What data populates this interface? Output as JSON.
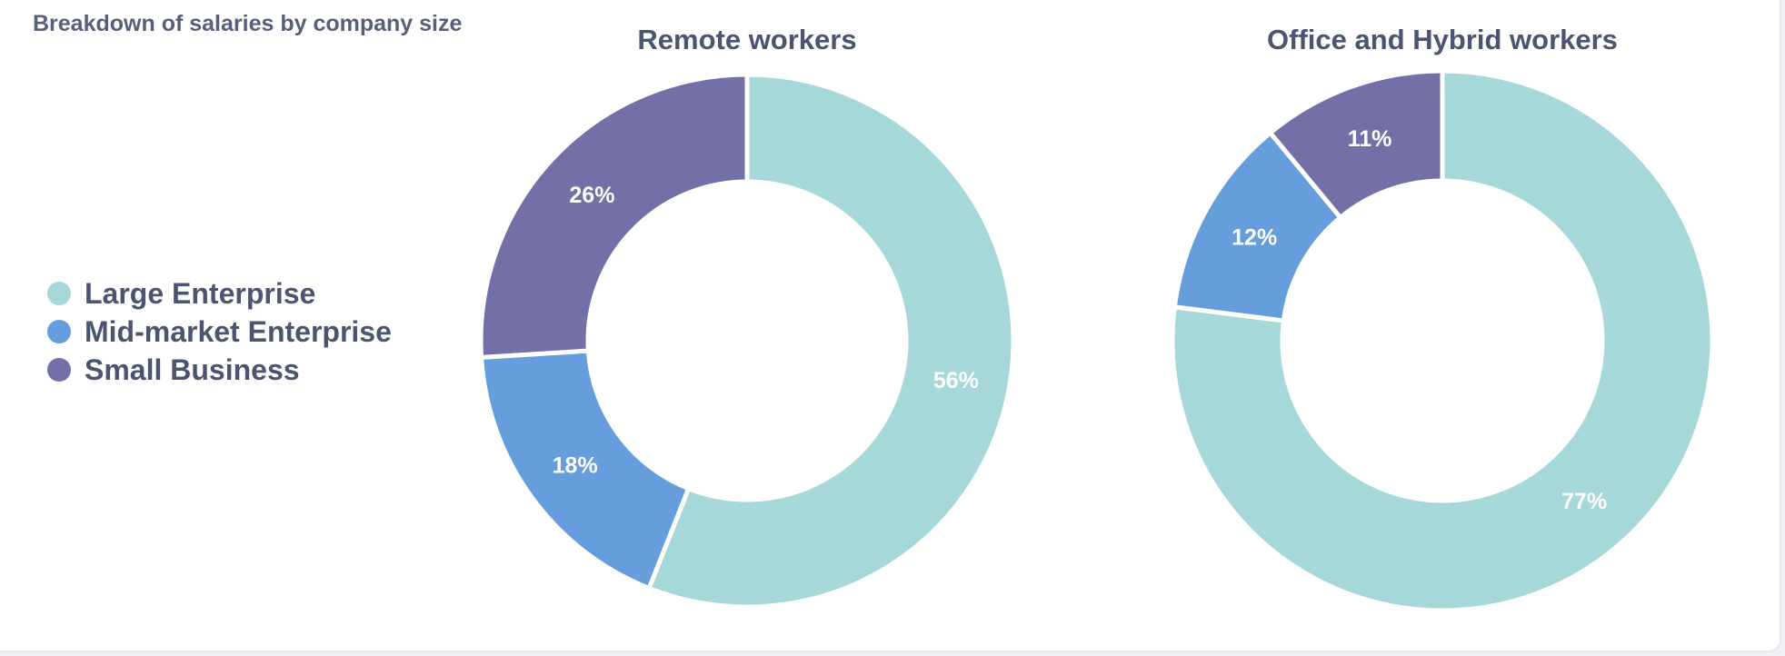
{
  "panel_title": "Breakdown of salaries by company size",
  "legend": [
    {
      "label": "Large Enterprise",
      "color": "#a6d8d9"
    },
    {
      "label": "Mid-market Enterprise",
      "color": "#659ddd"
    },
    {
      "label": "Small Business",
      "color": "#7370a8"
    }
  ],
  "chart_data": [
    {
      "type": "pie",
      "donut": true,
      "title": "Remote workers",
      "categories": [
        "Large Enterprise",
        "Mid-market Enterprise",
        "Small Business"
      ],
      "values": [
        56,
        18,
        26
      ],
      "labels": [
        "56%",
        "18%",
        "26%"
      ],
      "colors": [
        "#a6d8d9",
        "#659ddd",
        "#7370a8"
      ]
    },
    {
      "type": "pie",
      "donut": true,
      "title": "Office and Hybrid workers",
      "categories": [
        "Large Enterprise",
        "Mid-market Enterprise",
        "Small Business"
      ],
      "values": [
        77,
        12,
        11
      ],
      "labels": [
        "77%",
        "12%",
        "11%"
      ],
      "colors": [
        "#a6d8d9",
        "#659ddd",
        "#7370a8"
      ]
    }
  ]
}
